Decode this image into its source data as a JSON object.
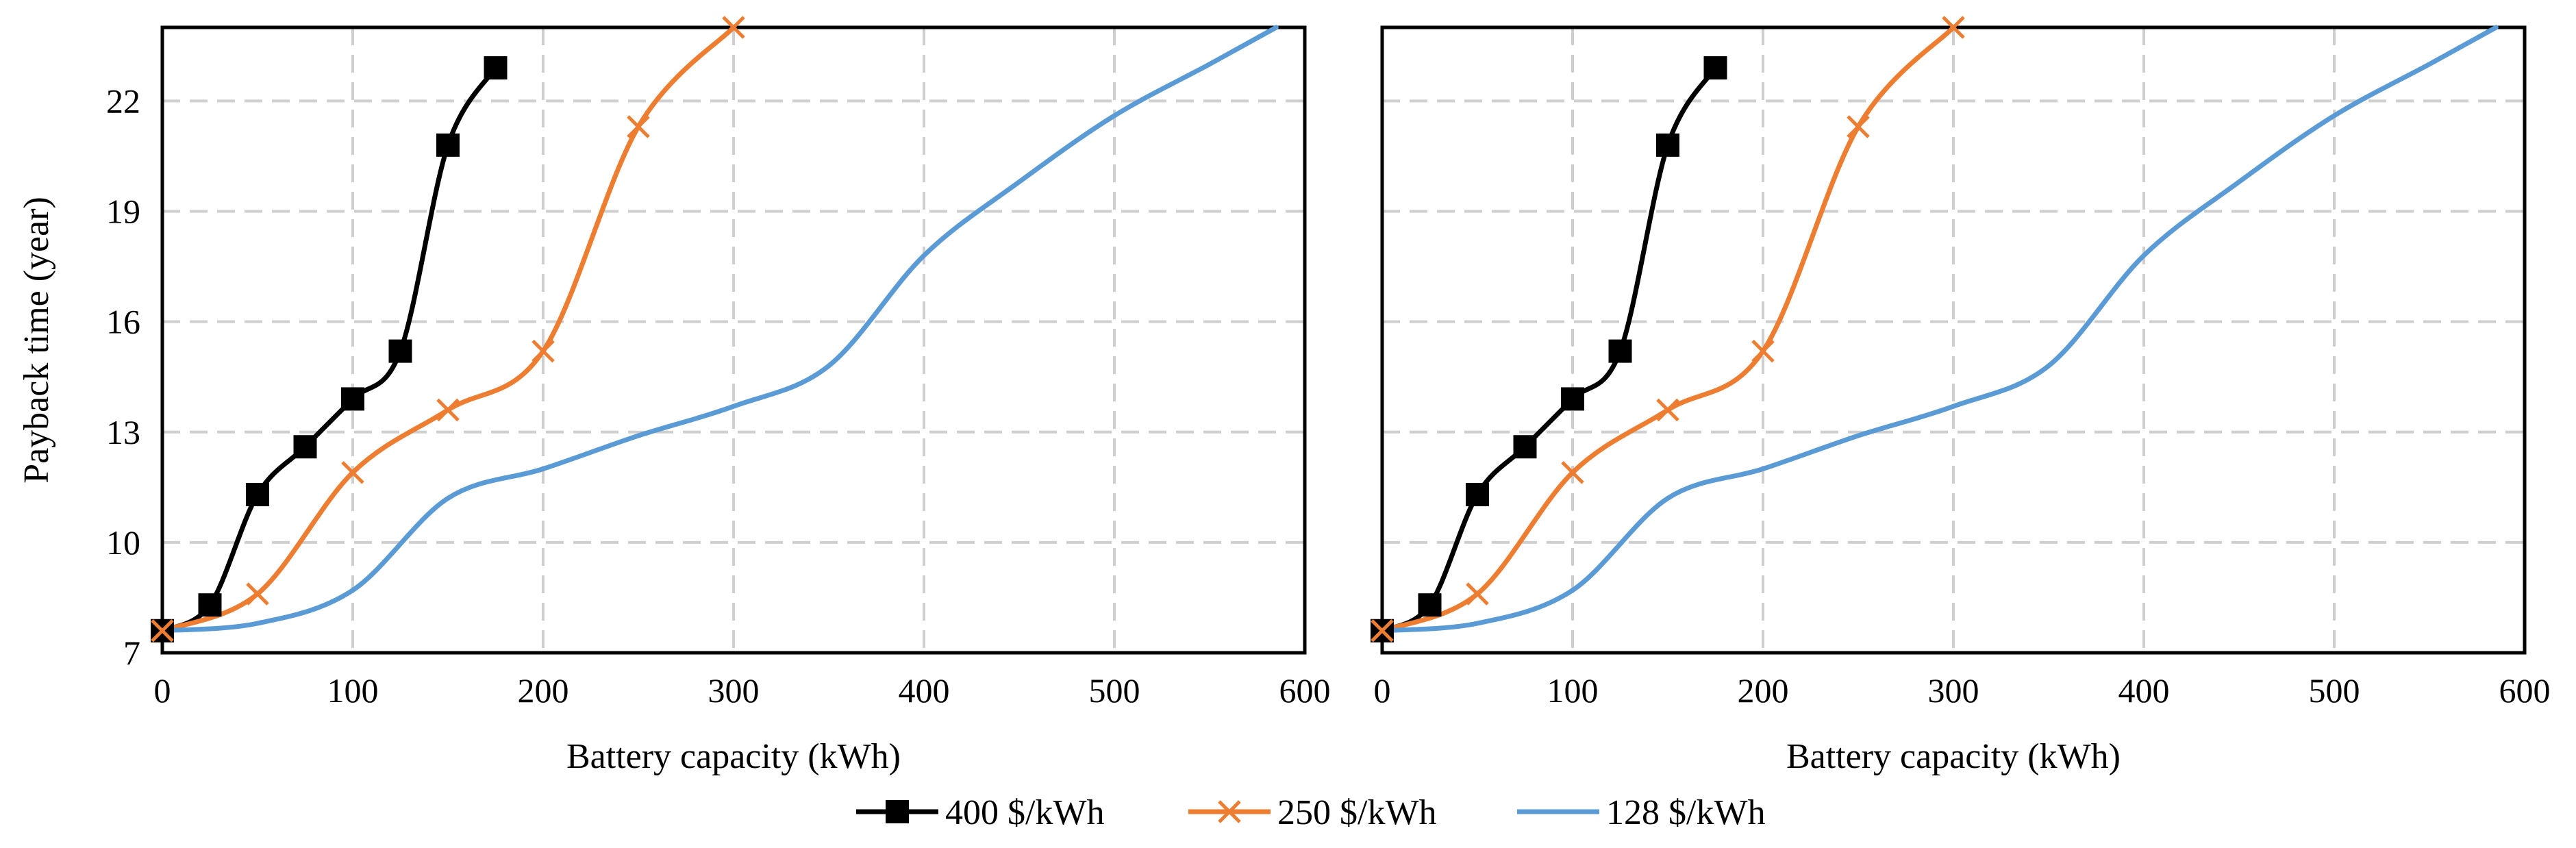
{
  "chart_data": [
    {
      "type": "line",
      "title": "",
      "xlabel": "Battery capacity (kWh)",
      "ylabel": "Payback time (year)",
      "xlim": [
        0,
        600
      ],
      "ylim": [
        7,
        24
      ],
      "xticks": [
        0,
        100,
        200,
        300,
        400,
        500,
        600
      ],
      "yticks": [
        7,
        10,
        13,
        16,
        19,
        22
      ],
      "grid": true,
      "series": [
        {
          "name": "400 $/kWh",
          "color": "#000000",
          "marker": "square",
          "x": [
            0,
            25,
            50,
            75,
            100,
            125,
            150,
            175
          ],
          "y": [
            7.6,
            8.3,
            11.3,
            12.6,
            13.9,
            15.2,
            20.8,
            22.9
          ]
        },
        {
          "name": "250 $/kWh",
          "color": "#ED7D31",
          "marker": "x",
          "x": [
            0,
            50,
            100,
            150,
            200,
            250,
            300
          ],
          "y": [
            7.6,
            8.6,
            11.9,
            13.6,
            15.2,
            21.3,
            24.0
          ]
        },
        {
          "name": "128 $/kWh",
          "color": "#5B9BD5",
          "marker": "none",
          "x": [
            0,
            50,
            100,
            150,
            200,
            250,
            300,
            350,
            400,
            450,
            500,
            550,
            585
          ],
          "y": [
            7.6,
            7.8,
            8.7,
            11.2,
            12.0,
            12.9,
            13.7,
            14.8,
            17.8,
            19.8,
            21.6,
            23.0,
            24.0
          ]
        }
      ]
    },
    {
      "type": "line",
      "title": "",
      "xlabel": "Battery capacity (kWh)",
      "ylabel": "",
      "xlim": [
        0,
        600
      ],
      "ylim": [
        7,
        24
      ],
      "xticks": [
        0,
        100,
        200,
        300,
        400,
        500,
        600
      ],
      "yticks": [],
      "grid": true,
      "series": [
        {
          "name": "400 $/kWh",
          "color": "#000000",
          "marker": "square",
          "x": [
            0,
            25,
            50,
            75,
            100,
            125,
            150,
            175
          ],
          "y": [
            7.6,
            8.3,
            11.3,
            12.6,
            13.9,
            15.2,
            20.8,
            22.9
          ]
        },
        {
          "name": "250 $/kWh",
          "color": "#ED7D31",
          "marker": "x",
          "x": [
            0,
            50,
            100,
            150,
            200,
            250,
            300
          ],
          "y": [
            7.6,
            8.6,
            11.9,
            13.6,
            15.2,
            21.3,
            24.0
          ]
        },
        {
          "name": "128 $/kWh",
          "color": "#5B9BD5",
          "marker": "none",
          "x": [
            0,
            50,
            100,
            150,
            200,
            250,
            300,
            350,
            400,
            450,
            500,
            550,
            585
          ],
          "y": [
            7.6,
            7.8,
            8.7,
            11.2,
            12.0,
            12.9,
            13.7,
            14.8,
            17.8,
            19.8,
            21.6,
            23.0,
            24.0
          ]
        }
      ]
    }
  ],
  "legend": {
    "placement": "bottom-center",
    "items": [
      {
        "label": "400 $/kWh",
        "color": "#000000",
        "marker": "square"
      },
      {
        "label": "250 $/kWh",
        "color": "#ED7D31",
        "marker": "x"
      },
      {
        "label": "128 $/kWh",
        "color": "#5B9BD5",
        "marker": "none"
      }
    ]
  }
}
